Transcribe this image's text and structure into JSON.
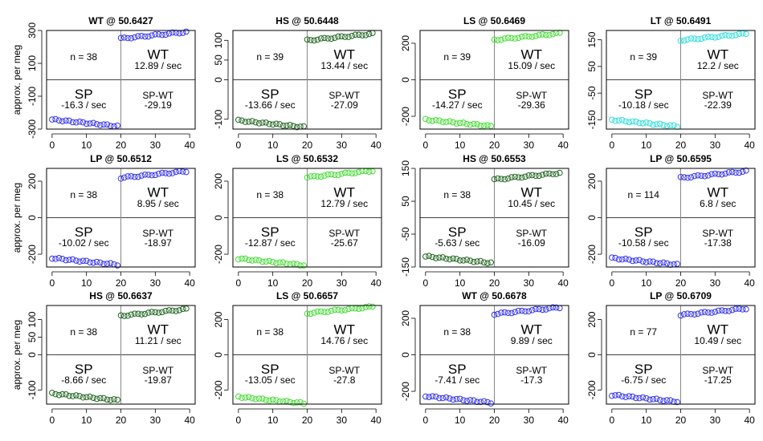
{
  "figure": {
    "ylabel": "approx. per meg",
    "xticks": [
      "0",
      "10",
      "20",
      "30",
      "40"
    ]
  },
  "colors": {
    "WT": "#3333ee",
    "HS": "#226622",
    "LS": "#44dd33",
    "LT": "#33dddd",
    "LP": "#3333ee"
  },
  "chart_data": [
    {
      "type": "scatter",
      "title": "WT @ 50.6427",
      "tag": "WT",
      "ylim": [
        -300,
        300
      ],
      "yticks": [
        "-300",
        "-100",
        "100",
        "300"
      ],
      "sp_mean": -263,
      "wt_mean": 275,
      "n_label": "n = 38",
      "wt_label": "WT",
      "wt_rate": "12.89 / sec",
      "sp_label": "SP",
      "sp_rate": "-16.3 / sec",
      "diff_label": "SP-WT",
      "diff_value": "-29.19"
    },
    {
      "type": "scatter",
      "title": "HS @ 50.6448",
      "tag": "HS",
      "ylim": [
        -125,
        125
      ],
      "yticks": [
        "-100",
        "0",
        "50",
        "100"
      ],
      "sp_mean": -112,
      "wt_mean": 110,
      "n_label": "n = 39",
      "wt_label": "WT",
      "wt_rate": "13.44 / sec",
      "sp_label": "SP",
      "sp_rate": "-13.66 / sec",
      "diff_label": "SP-WT",
      "diff_value": "-27.09"
    },
    {
      "type": "scatter",
      "title": "LS @ 50.6469",
      "tag": "LS",
      "ylim": [
        -270,
        270
      ],
      "yticks": [
        "-200",
        "0",
        "200"
      ],
      "sp_mean": -237,
      "wt_mean": 240,
      "n_label": "n = 39",
      "wt_label": "WT",
      "wt_rate": "15.09 / sec",
      "sp_label": "SP",
      "sp_rate": "-14.27 / sec",
      "diff_label": "SP-WT",
      "diff_value": "-29.36"
    },
    {
      "type": "scatter",
      "title": "LT @ 50.6491",
      "tag": "LT",
      "ylim": [
        -185,
        185
      ],
      "yticks": [
        "-150",
        "-50",
        "50",
        "150"
      ],
      "sp_mean": -163,
      "wt_mean": 163,
      "n_label": "n = 39",
      "wt_label": "WT",
      "wt_rate": "12.2 / sec",
      "sp_label": "SP",
      "sp_rate": "-10.18 / sec",
      "diff_label": "SP-WT",
      "diff_value": "-22.39"
    },
    {
      "type": "scatter",
      "title": "LP @ 50.6512",
      "tag": "LP",
      "ylim": [
        -270,
        270
      ],
      "yticks": [
        "-200",
        "0",
        "200"
      ],
      "sp_mean": -240,
      "wt_mean": 240,
      "n_label": "n = 38",
      "wt_label": "WT",
      "wt_rate": "8.95 / sec",
      "sp_label": "SP",
      "sp_rate": "-10.02 / sec",
      "diff_label": "SP-WT",
      "diff_value": "-18.97"
    },
    {
      "type": "scatter",
      "title": "LS @ 50.6532",
      "tag": "LS",
      "ylim": [
        -270,
        270
      ],
      "yticks": [
        "-200",
        "0",
        "200"
      ],
      "sp_mean": -243,
      "wt_mean": 243,
      "n_label": "n = 38",
      "wt_label": "WT",
      "wt_rate": "12.79 / sec",
      "sp_label": "SP",
      "sp_rate": "-12.87 / sec",
      "diff_label": "SP-WT",
      "diff_value": "-25.67"
    },
    {
      "type": "scatter",
      "title": "HS @ 50.6553",
      "tag": "HS",
      "ylim": [
        -150,
        150
      ],
      "yticks": [
        "-150",
        "-50",
        "50",
        "150"
      ],
      "sp_mean": -128,
      "wt_mean": 128,
      "n_label": "n = 38",
      "wt_label": "WT",
      "wt_rate": "10.45 / sec",
      "sp_label": "SP",
      "sp_rate": "-5.63 / sec",
      "diff_label": "SP-WT",
      "diff_value": "-16.09"
    },
    {
      "type": "scatter",
      "title": "LP @ 50.6595",
      "tag": "LP",
      "ylim": [
        -270,
        270
      ],
      "yticks": [
        "-200",
        "0",
        "200"
      ],
      "sp_mean": -240,
      "wt_mean": 240,
      "n_label": "n = 114",
      "wt_label": "WT",
      "wt_rate": "6.8 / sec",
      "sp_label": "SP",
      "sp_rate": "-10.58 / sec",
      "diff_label": "SP-WT",
      "diff_value": "-17.38"
    },
    {
      "type": "scatter",
      "title": "HS @ 50.6637",
      "tag": "HS",
      "ylim": [
        -140,
        140
      ],
      "yticks": [
        "-100",
        "0",
        "50",
        "100"
      ],
      "sp_mean": -120,
      "wt_mean": 122,
      "n_label": "n = 38",
      "wt_label": "WT",
      "wt_rate": "11.21 / sec",
      "sp_label": "SP",
      "sp_rate": "-8.66 / sec",
      "diff_label": "SP-WT",
      "diff_value": "-19.87"
    },
    {
      "type": "scatter",
      "title": "LS @ 50.6657",
      "tag": "LS",
      "ylim": [
        -280,
        280
      ],
      "yticks": [
        "-200",
        "0",
        "200"
      ],
      "sp_mean": -258,
      "wt_mean": 258,
      "n_label": "n = 38",
      "wt_label": "WT",
      "wt_rate": "14.76 / sec",
      "sp_label": "SP",
      "sp_rate": "-13.05 / sec",
      "diff_label": "SP-WT",
      "diff_value": "-27.8"
    },
    {
      "type": "scatter",
      "title": "WT @ 50.6678",
      "tag": "WT",
      "ylim": [
        -270,
        270
      ],
      "yticks": [
        "-200",
        "0",
        "200"
      ],
      "sp_mean": -245,
      "wt_mean": 245,
      "n_label": "n = 38",
      "wt_label": "WT",
      "wt_rate": "9.89 / sec",
      "sp_label": "SP",
      "sp_rate": "-7.41 / sec",
      "diff_label": "SP-WT",
      "diff_value": "-17.3"
    },
    {
      "type": "scatter",
      "title": "LP @ 50.6709",
      "tag": "LP",
      "ylim": [
        -280,
        280
      ],
      "yticks": [
        "-200",
        "0",
        "200"
      ],
      "sp_mean": -248,
      "wt_mean": 248,
      "n_label": "n = 77",
      "wt_label": "WT",
      "wt_rate": "10.49 / sec",
      "sp_label": "SP",
      "sp_rate": "-6.75 / sec",
      "diff_label": "SP-WT",
      "diff_value": "-17.25"
    }
  ]
}
